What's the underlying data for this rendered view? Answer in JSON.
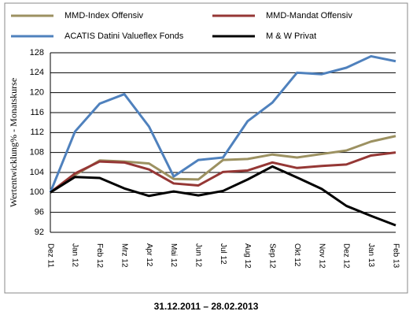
{
  "chart_data": {
    "type": "line",
    "x_label": "Wertentwicklung% - Monatskurse",
    "caption": "31.12.2011 – 28.02.2013",
    "categories": [
      "Dez 11",
      "Jan 12",
      "Feb 12",
      "Mrz 12",
      "Apr 12",
      "Mai 12",
      "Jun 12",
      "Jul 12",
      "Aug 12",
      "Sep 12",
      "Okt 12",
      "Nov 12",
      "Dez 12",
      "Jan 13",
      "Feb 13"
    ],
    "series": [
      {
        "name": "MMD-Index Offensiv",
        "color": "#9c9161",
        "values": [
          100,
          103.5,
          106.4,
          106.2,
          105.8,
          102.7,
          102.6,
          106.5,
          106.7,
          107.6,
          107,
          107.7,
          108.4,
          110.2,
          111.3
        ]
      },
      {
        "name": "MMD-Mandat Offensiv",
        "color": "#953735",
        "values": [
          100,
          103.8,
          106.2,
          106,
          104.6,
          101.8,
          101.4,
          104.1,
          104.4,
          106,
          104.9,
          105.3,
          105.6,
          107.4,
          108
        ]
      },
      {
        "name": "ACATIS Datini Valueflex Fonds",
        "color": "#4f81bd",
        "values": [
          100,
          112.2,
          117.8,
          119.7,
          113.2,
          103.2,
          106.5,
          107,
          114.3,
          118,
          124,
          123.7,
          125,
          127.3,
          126.3
        ]
      },
      {
        "name": "M & W Privat",
        "color": "#000000",
        "values": [
          100,
          103.1,
          102.9,
          100.8,
          99.3,
          100.2,
          99.4,
          100.3,
          102.6,
          105.2,
          103,
          100.7,
          97.3,
          95.3,
          93.4
        ]
      }
    ],
    "ylim": [
      92,
      128
    ],
    "yticks": [
      92,
      96,
      100,
      104,
      108,
      112,
      116,
      120,
      124,
      128
    ],
    "grid": true
  }
}
